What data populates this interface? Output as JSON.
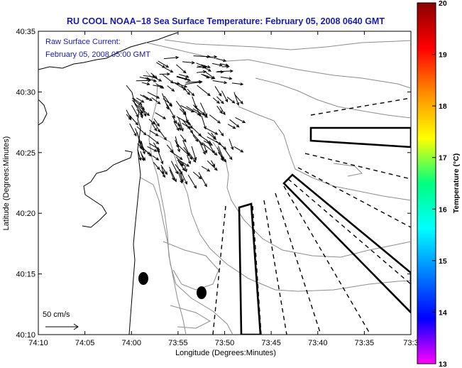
{
  "chart_data": {
    "type": "map-plot",
    "title": "RU COOL  NOAA−18  Sea Surface Temperature:  February 05, 2008 0640 GMT",
    "xlabel": "Longitude (Degrees:Minutes)",
    "ylabel": "Latitude (Degrees:Minutes)",
    "annotation_line1": "Raw Surface Current:",
    "annotation_line2": "February 05, 2008 05:00 GMT",
    "scale_label": "50 cm/s",
    "x_tick_labels": [
      "74:10",
      "74:05",
      "74:00",
      "73:55",
      "73:50",
      "73:45",
      "73:40",
      "73:35",
      "73:3"
    ],
    "y_tick_labels": [
      "40:35",
      "40:30",
      "40:25",
      "40:20",
      "40:15",
      "40:10"
    ],
    "colorbar": {
      "label": "Temperature (°C)",
      "min": 13,
      "max": 20,
      "tick_labels": [
        "20",
        "19",
        "18",
        "17",
        "16",
        "15",
        "14",
        "13"
      ],
      "colors": [
        "#8b0000",
        "#ff0000",
        "#ff8c00",
        "#ffff00",
        "#00ff80",
        "#00ffff",
        "#0080ff",
        "#0000ff",
        "#ff00ff"
      ]
    }
  }
}
